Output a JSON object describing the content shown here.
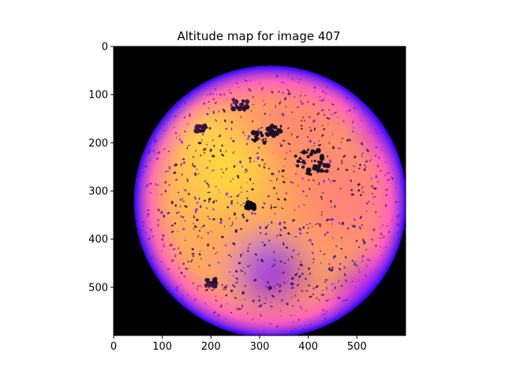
{
  "chart_data": {
    "type": "heatmap",
    "title": "Altitude map for image 407",
    "xlabel": "",
    "ylabel": "",
    "xlim": [
      0,
      600
    ],
    "ylim": [
      600,
      0
    ],
    "x_ticks": [
      0,
      100,
      200,
      300,
      400,
      500
    ],
    "y_ticks": [
      0,
      100,
      200,
      300,
      400,
      500
    ],
    "grid": false,
    "colormap": "gnuplot2",
    "background_color": "#000000",
    "disk": {
      "center": [
        322,
        322
      ],
      "radius": 280
    },
    "colorscale": [
      "#000000",
      "#1a0066",
      "#4d00ff",
      "#ff33ff",
      "#ff8866",
      "#ffff22"
    ],
    "high_regions": [
      {
        "center": [
          130,
          160
        ],
        "value": 1.0
      },
      {
        "center": [
          220,
          260
        ],
        "value": 0.95
      },
      {
        "center": [
          90,
          250
        ],
        "value": 0.9
      },
      {
        "center": [
          380,
          180
        ],
        "value": 0.8
      },
      {
        "center": [
          140,
          420
        ],
        "value": 0.88
      },
      {
        "center": [
          270,
          400
        ],
        "value": 0.85
      },
      {
        "center": [
          470,
          320
        ],
        "value": 0.78
      }
    ],
    "low_regions": [
      {
        "center": [
          320,
          465
        ],
        "value": 0.45
      },
      {
        "center": [
          580,
          150
        ],
        "value": 0.3
      },
      {
        "center": [
          540,
          520
        ],
        "value": 0.35
      }
    ]
  }
}
